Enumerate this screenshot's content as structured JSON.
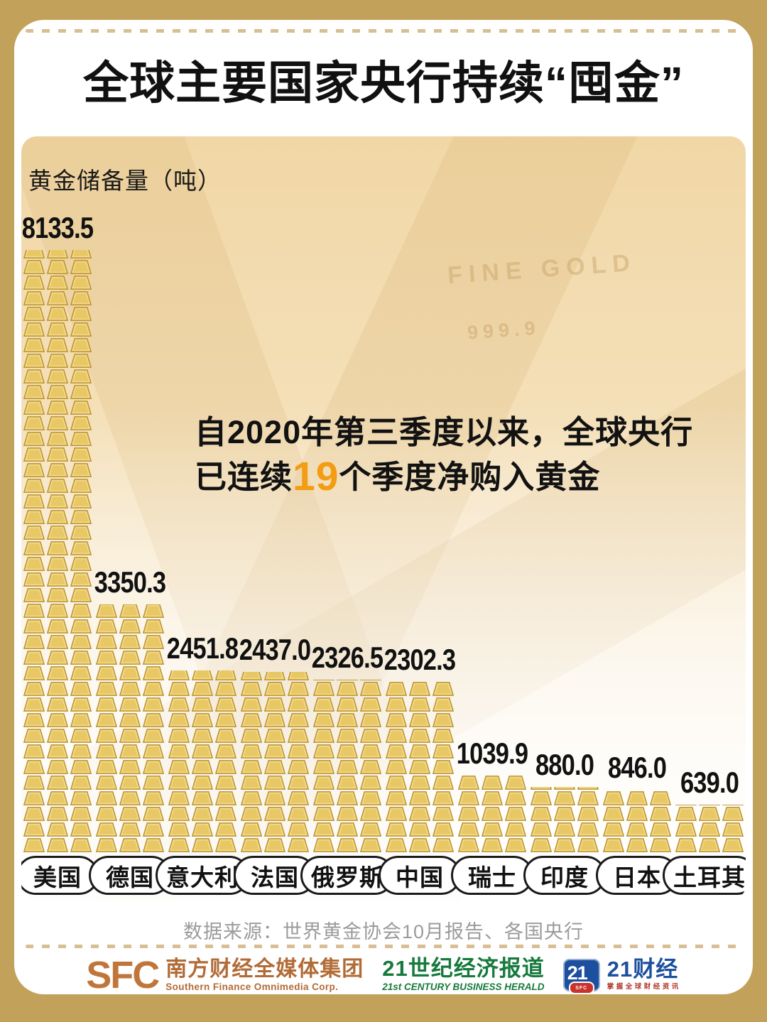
{
  "title": "全球主要国家央行持续“囤金”",
  "chart_data": {
    "type": "bar",
    "style": "pictogram-gold-bar-stacks",
    "title": "全球主要国家央行持续“囤金”",
    "ylabel": "黄金储备量（吨）",
    "xlabel": "",
    "categories": [
      "美国",
      "德国",
      "意大利",
      "法国",
      "俄罗斯",
      "中国",
      "瑞士",
      "印度",
      "日本",
      "土耳其"
    ],
    "values": [
      8133.5,
      3350.3,
      2451.8,
      2437.0,
      2326.5,
      2302.3,
      1039.9,
      880.0,
      846.0,
      639.0
    ],
    "value_labels": [
      "8133.5",
      "3350.3",
      "2451.8",
      "2437.0",
      "2326.5",
      "2302.3",
      "1039.9",
      "880.0",
      "846.0",
      "639.0"
    ],
    "ylim": [
      0,
      8500
    ],
    "grid": false,
    "legend": "none",
    "bar_fill_color": "#E8C765",
    "bar_stroke_color": "#B99230"
  },
  "annotation": {
    "line1": "自2020年第三季度以来，全球央行",
    "line2_prefix": "已连续",
    "line2_highlight": "19",
    "line2_suffix": "个季度净购入黄金",
    "highlight_color": "#F49C12"
  },
  "decor": {
    "fine_gold": "FINE GOLD",
    "purity": "999.9"
  },
  "source": "数据来源：世界黄金协会10月报告、各国央行",
  "footer": {
    "sfc_logo_text": "SFC",
    "sfc_name_cn": "南方财经全媒体集团",
    "sfc_name_en": "Southern Finance Omnimedia Corp.",
    "herald_name_cn": "21世纪经济报道",
    "herald_name_en": "21st CENTURY BUSINESS HERALD",
    "logo21_number": "21",
    "logo21_badge": "SFC",
    "cj_name": "21财经",
    "cj_tagline": "掌握全球财经资讯"
  },
  "colors": {
    "outer_background": "#C2A15B",
    "card_background": "#FFFFFF",
    "panel_top_tan": "#F1D7A6",
    "dash_line": "#D8BE92",
    "highlight_orange": "#F49C12",
    "sfc_copper": "#B26B36",
    "herald_green": "#177A3D",
    "cj_blue": "#1C4F9E",
    "badge_red": "#C8322B"
  }
}
